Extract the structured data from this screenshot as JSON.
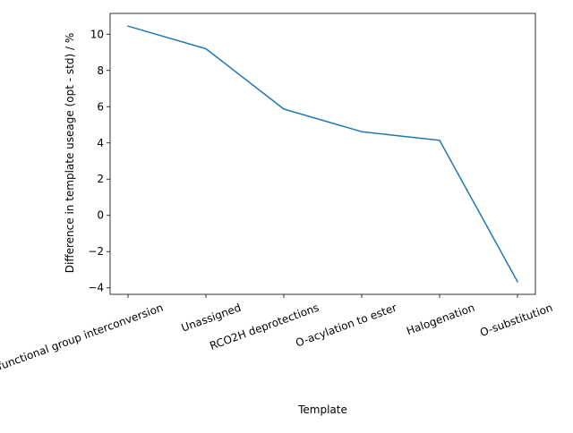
{
  "chart_data": {
    "type": "line",
    "title": "",
    "xlabel": "Template",
    "ylabel": "Difference in template useage (opt - std) / %",
    "categories": [
      "Other functional group interconversion",
      "Unassigned",
      "RCO2H deprotections",
      "O-acylation to ester",
      "Halogenation",
      "O-substitution"
    ],
    "series": [
      {
        "values": [
          10.45,
          9.2,
          5.87,
          4.62,
          4.14,
          -3.66
        ],
        "color": "#1f77b4"
      }
    ],
    "y_ticks": [
      -4,
      -2,
      0,
      2,
      4,
      6,
      8,
      10
    ],
    "y_tick_labels": [
      "−4",
      "−2",
      "0",
      "2",
      "4",
      "6",
      "8",
      "10"
    ],
    "ylim": [
      -4.36,
      11.15
    ],
    "grid": false,
    "legend": "none"
  }
}
